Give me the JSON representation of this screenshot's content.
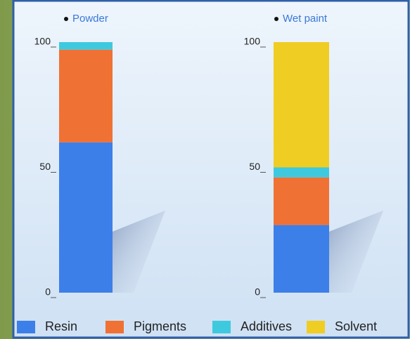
{
  "chart_data": [
    {
      "type": "bar",
      "title": "Powder",
      "ylim": [
        0,
        100
      ],
      "yticks": [
        0,
        50,
        100
      ],
      "series": [
        {
          "name": "Resin",
          "color": "#3d7fe8",
          "values": [
            60
          ]
        },
        {
          "name": "Pigments",
          "color": "#f07134",
          "values": [
            37
          ]
        },
        {
          "name": "Additives",
          "color": "#3fc9df",
          "values": [
            3
          ]
        }
      ]
    },
    {
      "type": "bar",
      "title": "Wet paint",
      "ylim": [
        0,
        100
      ],
      "yticks": [
        0,
        50,
        100
      ],
      "series": [
        {
          "name": "Resin",
          "color": "#3d7fe8",
          "values": [
            27
          ]
        },
        {
          "name": "Pigments",
          "color": "#f07134",
          "values": [
            19
          ]
        },
        {
          "name": "Additives",
          "color": "#3fc9df",
          "values": [
            4
          ]
        },
        {
          "name": "Solvent",
          "color": "#f0cd22",
          "values": [
            50
          ]
        }
      ]
    }
  ]
}
